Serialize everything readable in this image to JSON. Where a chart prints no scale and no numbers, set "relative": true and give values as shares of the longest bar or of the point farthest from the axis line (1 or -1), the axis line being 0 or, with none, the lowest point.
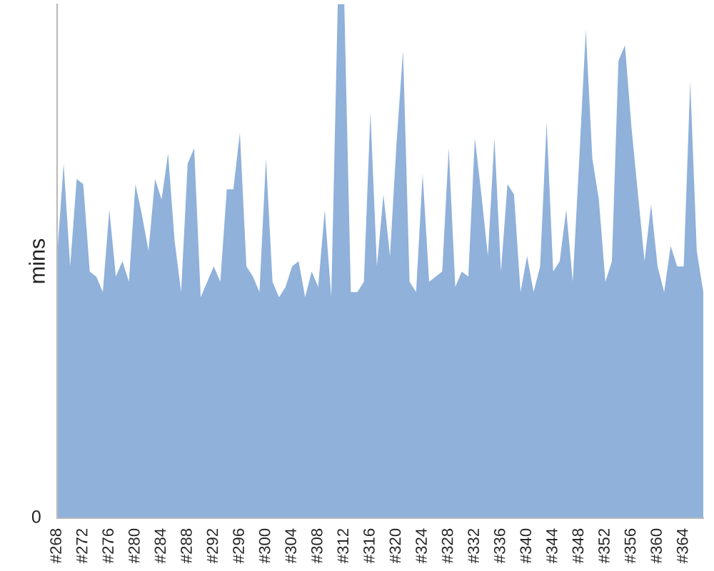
{
  "chart_data": {
    "type": "area",
    "ylabel": "mins",
    "relative": true,
    "color": "#8fb1da",
    "categories": [
      "#268",
      null,
      null,
      null,
      "#272",
      null,
      null,
      null,
      "#276",
      null,
      null,
      null,
      "#280",
      null,
      null,
      null,
      "#284",
      null,
      null,
      null,
      "#288",
      null,
      null,
      null,
      "#292",
      null,
      null,
      null,
      "#296",
      null,
      null,
      null,
      "#300",
      null,
      null,
      null,
      "#304",
      null,
      null,
      null,
      "#308",
      null,
      null,
      null,
      "#312",
      null,
      null,
      null,
      "#316",
      null,
      null,
      null,
      "#320",
      null,
      null,
      null,
      "#324",
      null,
      null,
      null,
      "#328",
      null,
      null,
      null,
      "#332",
      null,
      null,
      null,
      "#336",
      null,
      null,
      null,
      "#340",
      null,
      null,
      null,
      "#344",
      null,
      null,
      null,
      "#348",
      null,
      null,
      null,
      "#352",
      null,
      null,
      null,
      "#356",
      null,
      null,
      null,
      "#360",
      null,
      null,
      null,
      "#364",
      null,
      null,
      null
    ],
    "values": [
      0.51,
      0.69,
      0.49,
      0.66,
      0.65,
      0.48,
      0.47,
      0.44,
      0.6,
      0.47,
      0.5,
      0.46,
      0.65,
      0.59,
      0.52,
      0.66,
      0.62,
      0.71,
      0.54,
      0.44,
      0.69,
      0.72,
      0.43,
      0.46,
      0.49,
      0.46,
      0.64,
      0.64,
      0.75,
      0.49,
      0.47,
      0.44,
      0.7,
      0.46,
      0.43,
      0.45,
      0.49,
      0.5,
      0.43,
      0.48,
      0.45,
      0.6,
      0.43,
      1,
      1,
      0.44,
      0.44,
      0.46,
      0.79,
      0.49,
      0.63,
      0.51,
      0.73,
      0.91,
      0.46,
      0.44,
      0.67,
      0.46,
      0.47,
      0.48,
      0.72,
      0.45,
      0.48,
      0.47,
      0.74,
      0.63,
      0.51,
      0.74,
      0.48,
      0.65,
      0.63,
      0.44,
      0.51,
      0.44,
      0.49,
      0.77,
      0.48,
      0.5,
      0.6,
      0.46,
      0.7,
      0.95,
      0.7,
      0.62,
      0.46,
      0.5,
      0.89,
      0.92,
      0.76,
      0.63,
      0.5,
      0.61,
      0.49,
      0.44,
      0.53,
      0.49,
      0.49,
      0.85,
      0.52,
      0.44
    ],
    "annotations": [
      "0"
    ]
  }
}
